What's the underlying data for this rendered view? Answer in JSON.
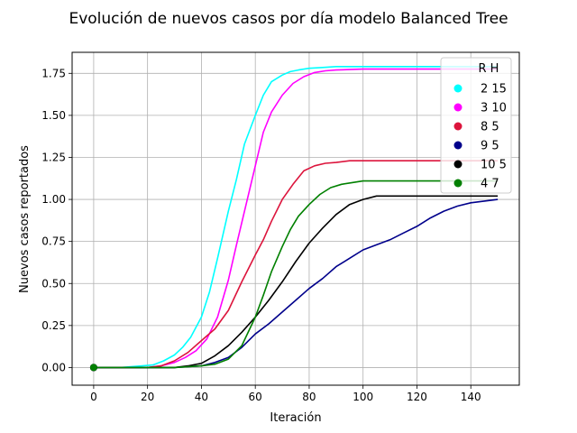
{
  "chart_data": {
    "type": "line",
    "title": "Evolución de nuevos casos por día modelo Balanced Tree",
    "xlabel": "Iteración",
    "ylabel": "Nuevos casos reportados",
    "xlim": [
      -8,
      158
    ],
    "ylim": [
      -0.105,
      1.875
    ],
    "xticks": [
      0,
      20,
      40,
      60,
      80,
      100,
      120,
      140
    ],
    "xtick_labels": [
      "0",
      "20",
      "40",
      "60",
      "80",
      "100",
      "120",
      "140"
    ],
    "yticks": [
      0,
      0.25,
      0.5,
      0.75,
      1.0,
      1.25,
      1.5,
      1.75
    ],
    "ytick_labels": [
      "0.00",
      "0.25",
      "0.50",
      "0.75",
      "1.00",
      "1.25",
      "1.50",
      "1.75"
    ],
    "grid": true,
    "legend": {
      "title": "R H",
      "placement": "top-right"
    },
    "series": [
      {
        "name": "2 15",
        "color": "#00ffff",
        "x": [
          0,
          10,
          18,
          22,
          26,
          30,
          33,
          36,
          40,
          43,
          46,
          50,
          53,
          56,
          60,
          63,
          66,
          70,
          73,
          76,
          80,
          85,
          90,
          100,
          110,
          120,
          130,
          140,
          150
        ],
        "y": [
          0,
          0,
          0.01,
          0.015,
          0.04,
          0.075,
          0.12,
          0.18,
          0.3,
          0.45,
          0.65,
          0.93,
          1.12,
          1.33,
          1.5,
          1.62,
          1.7,
          1.74,
          1.76,
          1.77,
          1.78,
          1.785,
          1.79,
          1.79,
          1.79,
          1.79,
          1.79,
          1.79,
          1.79
        ]
      },
      {
        "name": "3 10",
        "color": "#ff00ff",
        "x": [
          0,
          20,
          25,
          30,
          34,
          38,
          42,
          46,
          50,
          53,
          56,
          60,
          63,
          66,
          70,
          74,
          78,
          82,
          86,
          90,
          100,
          110,
          120,
          130,
          140,
          150
        ],
        "y": [
          0,
          0,
          0.01,
          0.03,
          0.06,
          0.1,
          0.17,
          0.3,
          0.52,
          0.73,
          0.93,
          1.2,
          1.4,
          1.52,
          1.62,
          1.69,
          1.73,
          1.755,
          1.765,
          1.77,
          1.775,
          1.775,
          1.775,
          1.775,
          1.775,
          1.775
        ]
      },
      {
        "name": "8 5",
        "color": "#dc143c",
        "x": [
          0,
          20,
          25,
          30,
          35,
          40,
          45,
          50,
          55,
          60,
          63,
          66,
          70,
          74,
          78,
          82,
          86,
          90,
          95,
          100,
          110,
          120,
          130,
          140,
          150
        ],
        "y": [
          0,
          0,
          0.01,
          0.04,
          0.09,
          0.16,
          0.23,
          0.34,
          0.51,
          0.67,
          0.76,
          0.87,
          1.0,
          1.09,
          1.17,
          1.2,
          1.215,
          1.22,
          1.23,
          1.23,
          1.23,
          1.23,
          1.23,
          1.23,
          1.23
        ]
      },
      {
        "name": "9 5",
        "color": "#00008b",
        "x": [
          0,
          30,
          35,
          40,
          45,
          50,
          55,
          60,
          65,
          70,
          75,
          80,
          85,
          90,
          95,
          100,
          105,
          110,
          115,
          120,
          125,
          130,
          135,
          140,
          145,
          150
        ],
        "y": [
          0,
          0,
          0.005,
          0.01,
          0.03,
          0.06,
          0.12,
          0.2,
          0.26,
          0.33,
          0.4,
          0.47,
          0.53,
          0.6,
          0.65,
          0.7,
          0.73,
          0.76,
          0.8,
          0.84,
          0.89,
          0.93,
          0.96,
          0.98,
          0.99,
          1.0
        ]
      },
      {
        "name": "10 5",
        "color": "#000000",
        "x": [
          0,
          30,
          35,
          40,
          45,
          50,
          55,
          60,
          65,
          70,
          75,
          80,
          85,
          90,
          95,
          100,
          105,
          110,
          120,
          130,
          140,
          150
        ],
        "y": [
          0,
          0,
          0.01,
          0.025,
          0.07,
          0.13,
          0.21,
          0.3,
          0.4,
          0.51,
          0.63,
          0.74,
          0.83,
          0.91,
          0.97,
          1.0,
          1.02,
          1.02,
          1.02,
          1.02,
          1.02,
          1.02
        ]
      },
      {
        "name": "4 7",
        "color": "#008000",
        "x": [
          0,
          30,
          40,
          45,
          50,
          55,
          60,
          63,
          66,
          70,
          73,
          76,
          80,
          84,
          88,
          92,
          96,
          100,
          110,
          120,
          130,
          140,
          150
        ],
        "y": [
          0,
          0,
          0.01,
          0.02,
          0.05,
          0.13,
          0.3,
          0.43,
          0.57,
          0.72,
          0.82,
          0.9,
          0.97,
          1.03,
          1.07,
          1.09,
          1.1,
          1.11,
          1.11,
          1.11,
          1.11,
          1.11,
          1.11
        ]
      }
    ]
  }
}
